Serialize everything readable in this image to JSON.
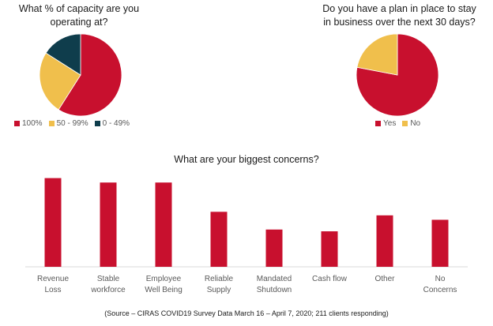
{
  "chart_data": [
    {
      "type": "pie",
      "title_lines": [
        "What % of capacity are you",
        "operating at?"
      ],
      "slices": [
        {
          "label": "100%",
          "value": 59,
          "color": "#c8102e"
        },
        {
          "label": "50 - 99%",
          "value": 25,
          "color": "#f0bf4c"
        },
        {
          "label": "0 - 49%",
          "value": 16,
          "color": "#0f3d4c"
        }
      ],
      "legend": "bottom"
    },
    {
      "type": "pie",
      "title_lines": [
        "Do you have a plan in place to stay",
        "in business over the next 30 days?"
      ],
      "slices": [
        {
          "label": "Yes",
          "value": 78,
          "color": "#c8102e"
        },
        {
          "label": "No",
          "value": 22,
          "color": "#f0bf4c"
        }
      ],
      "legend": "bottom"
    },
    {
      "type": "bar",
      "title": "What are your biggest concerns?",
      "categories": [
        [
          "Revenue",
          "Loss"
        ],
        [
          "Stable",
          "workforce"
        ],
        [
          "Employee",
          "Well Being"
        ],
        [
          "Reliable",
          "Supply"
        ],
        [
          "Mandated",
          "Shutdown"
        ],
        [
          "Cash flow"
        ],
        [
          "Other"
        ],
        [
          "No",
          "Concerns"
        ]
      ],
      "values": [
        100,
        95,
        95,
        62,
        42,
        40,
        58,
        53
      ],
      "ylim": [
        0,
        105
      ],
      "color": "#c8102e",
      "grid": false
    }
  ],
  "source": "(Source – CIRAS COVID19 Survey Data March 16 – April 7, 2020; 211 clients responding)"
}
